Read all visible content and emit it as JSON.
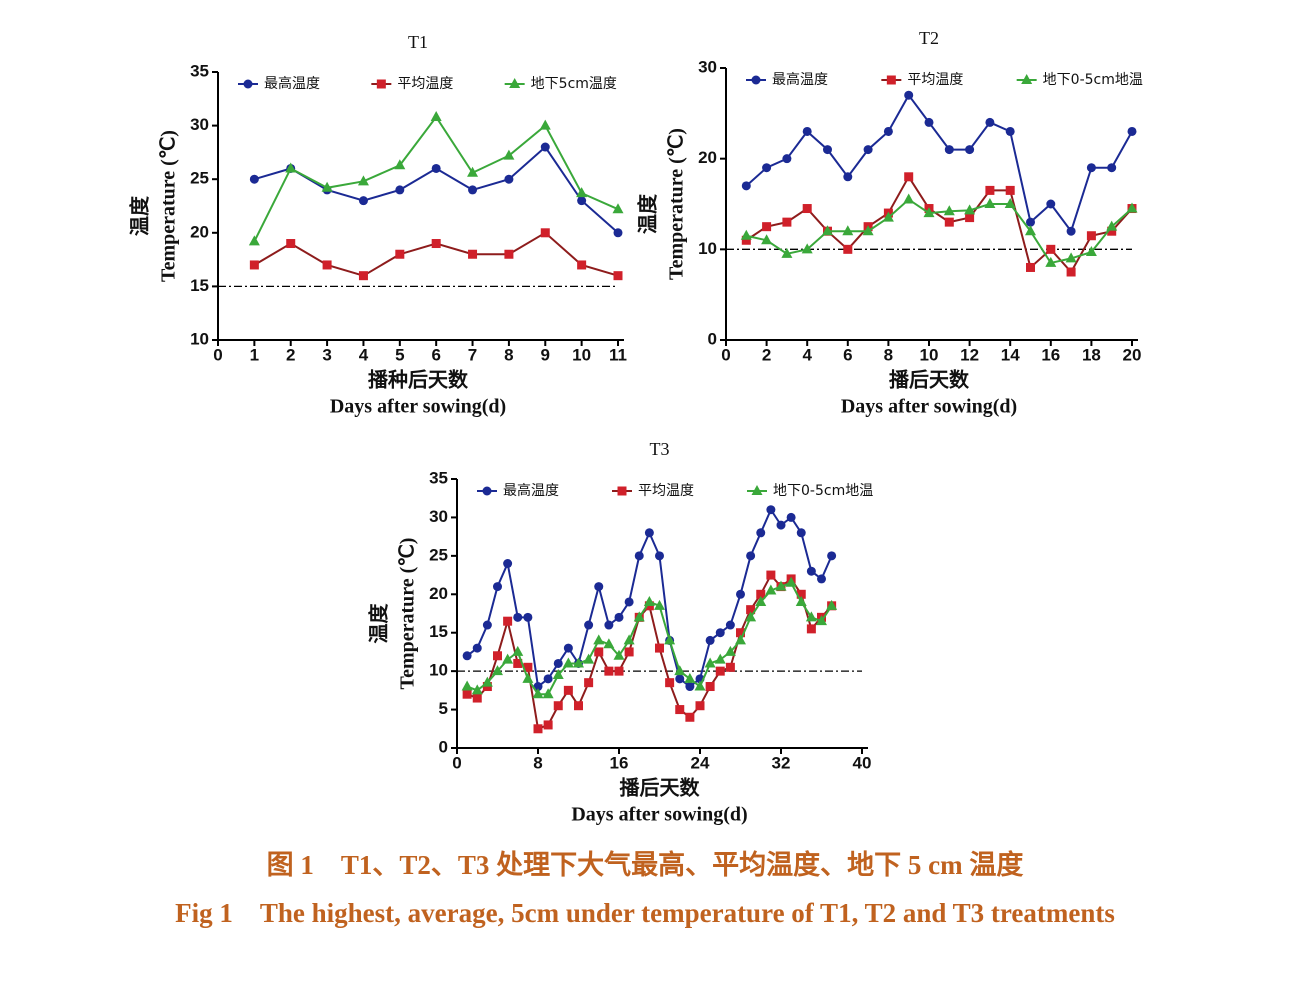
{
  "chart_data": [
    {
      "type": "line",
      "title": "T1",
      "ylabel": [
        "温度",
        "Temperature (℃)"
      ],
      "xlabel": [
        "播种后天数",
        "Days after sowing(d)"
      ],
      "x": [
        1,
        2,
        3,
        4,
        5,
        6,
        7,
        8,
        9,
        10,
        11
      ],
      "xlim": [
        0,
        11
      ],
      "xticks": [
        0,
        1,
        2,
        3,
        4,
        5,
        6,
        7,
        8,
        9,
        10,
        11
      ],
      "ylim": [
        10,
        35
      ],
      "yticks": [
        10,
        15,
        20,
        25,
        30,
        35
      ],
      "reference_line": 15,
      "series": [
        {
          "name": "最高温度",
          "color": "#1b2a94",
          "marker": "circle",
          "values": [
            25,
            26,
            24,
            23,
            24,
            26,
            24,
            25,
            28,
            23,
            20
          ]
        },
        {
          "name": "平均温度",
          "color": "#8e1c1c",
          "marker": "square",
          "values": [
            17,
            19,
            17,
            16,
            18,
            19,
            18,
            18,
            20,
            17,
            16
          ]
        },
        {
          "name": "地下5cm温度",
          "color": "#3aa83a",
          "marker": "triangle",
          "values": [
            19.2,
            26,
            24.2,
            24.8,
            26.3,
            30.8,
            25.6,
            27.2,
            30,
            23.7,
            22.2
          ]
        }
      ]
    },
    {
      "type": "line",
      "title": "T2",
      "ylabel": [
        "温度",
        "Temperature (℃)"
      ],
      "xlabel": [
        "播后天数",
        "Days after sowing(d)"
      ],
      "x": [
        1,
        2,
        3,
        4,
        5,
        6,
        7,
        8,
        9,
        10,
        11,
        12,
        13,
        14,
        15,
        16,
        17,
        18,
        19,
        20
      ],
      "xlim": [
        0,
        20
      ],
      "xticks": [
        0,
        2,
        4,
        6,
        8,
        10,
        12,
        14,
        16,
        18,
        20
      ],
      "ylim": [
        0,
        30
      ],
      "yticks": [
        0,
        10,
        20,
        30
      ],
      "reference_line": 10,
      "series": [
        {
          "name": "最高温度",
          "color": "#1b2a94",
          "marker": "circle",
          "values": [
            17,
            19,
            20,
            23,
            21,
            18,
            21,
            23,
            27,
            24,
            21,
            21,
            24,
            23,
            13,
            15,
            12,
            19,
            19,
            23
          ]
        },
        {
          "name": "平均温度",
          "color": "#8e1c1c",
          "marker": "square",
          "values": [
            11,
            12.5,
            13,
            14.5,
            12,
            10,
            12.5,
            14,
            18,
            14.5,
            13,
            13.5,
            16.5,
            16.5,
            8,
            10,
            7.5,
            11.5,
            12,
            14.5
          ]
        },
        {
          "name": "地下0-5cm地温",
          "color": "#3aa83a",
          "marker": "triangle",
          "values": [
            11.5,
            11,
            9.5,
            10,
            12,
            12,
            12,
            13.5,
            15.5,
            14,
            14.2,
            14.3,
            15,
            15,
            12,
            8.5,
            9,
            9.7,
            12.5,
            14.5
          ]
        }
      ]
    },
    {
      "type": "line",
      "title": "T3",
      "ylabel": [
        "温度",
        "Temperature (℃)"
      ],
      "xlabel": [
        "播后天数",
        "Days after sowing(d)"
      ],
      "x": [
        1,
        2,
        3,
        4,
        5,
        6,
        7,
        8,
        9,
        10,
        11,
        12,
        13,
        14,
        15,
        16,
        17,
        18,
        19,
        20,
        21,
        22,
        23,
        24,
        25,
        26,
        27,
        28,
        29,
        30,
        31,
        32,
        33,
        34,
        35,
        36,
        37
      ],
      "xlim": [
        0,
        40
      ],
      "xticks": [
        0,
        8,
        16,
        24,
        32,
        40
      ],
      "ylim": [
        0,
        35
      ],
      "yticks": [
        0,
        5,
        10,
        15,
        20,
        25,
        30,
        35
      ],
      "reference_line": 10,
      "series": [
        {
          "name": "最高温度",
          "color": "#1b2a94",
          "marker": "circle",
          "values": [
            12,
            13,
            16,
            21,
            24,
            17,
            17,
            8,
            9,
            11,
            13,
            11,
            16,
            21,
            16,
            17,
            19,
            25,
            28,
            25,
            14,
            9,
            8,
            9,
            14,
            15,
            16,
            20,
            25,
            28,
            31,
            29,
            30,
            28,
            23,
            22,
            25
          ]
        },
        {
          "name": "平均温度",
          "color": "#8e1c1c",
          "marker": "square",
          "values": [
            7,
            6.5,
            8,
            12,
            16.5,
            11,
            10.5,
            2.5,
            3,
            5.5,
            7.5,
            5.5,
            8.5,
            12.5,
            10,
            10,
            12.5,
            17,
            18.5,
            13,
            8.5,
            5,
            4,
            5.5,
            8,
            10,
            10.5,
            15,
            18,
            20,
            22.5,
            21,
            22,
            20,
            15.5,
            17,
            18.5
          ]
        },
        {
          "name": "地下0-5cm地温",
          "color": "#3aa83a",
          "marker": "triangle",
          "values": [
            8,
            7.5,
            8.5,
            10,
            11.5,
            12.5,
            9,
            7,
            7,
            9.5,
            11,
            11,
            11.5,
            14,
            13.5,
            12,
            14,
            17,
            19,
            18.5,
            14,
            10,
            9,
            8,
            11,
            11.5,
            12.5,
            14,
            17,
            19,
            20.5,
            21,
            21.5,
            19,
            17,
            16.5,
            18.5
          ]
        }
      ]
    }
  ],
  "caption": {
    "zh": "图 1　T1、T2、T3 处理下大气最高、平均温度、地下 5 cm 温度",
    "en": "Fig 1　The highest, average, 5cm under temperature of T1, T2 and T3 treatments"
  }
}
